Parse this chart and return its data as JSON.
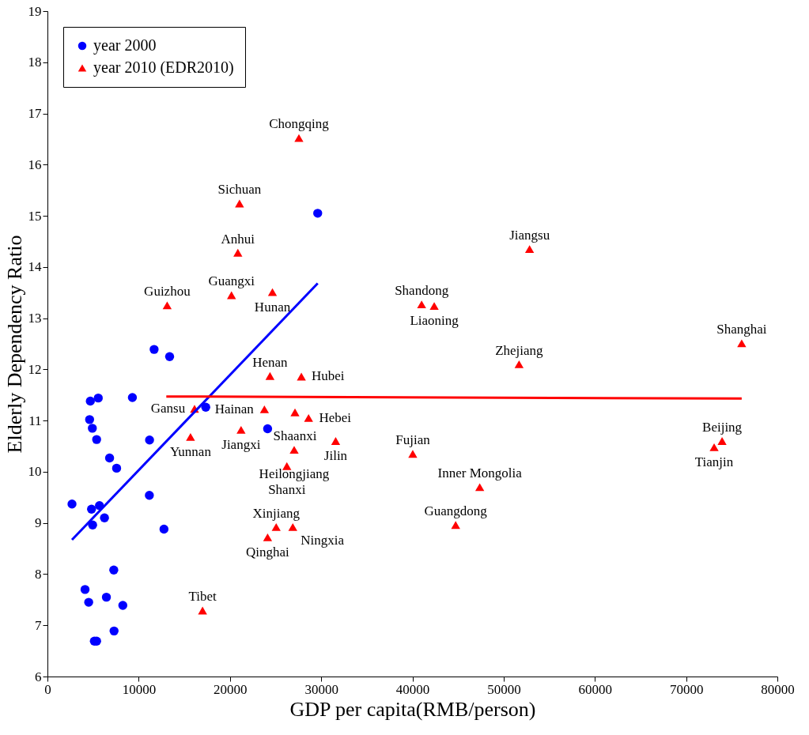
{
  "chart_data": {
    "type": "scatter",
    "xlabel": "GDP per capita(RMB/person)",
    "ylabel": "Elderly Dependency Ratio",
    "xlim": [
      0,
      80000
    ],
    "xticks": [
      0,
      10000,
      20000,
      30000,
      40000,
      50000,
      60000,
      70000,
      80000
    ],
    "ylim": [
      6,
      19
    ],
    "yticks": [
      6,
      7,
      8,
      9,
      10,
      11,
      12,
      13,
      14,
      15,
      16,
      17,
      18,
      19
    ],
    "grid": false,
    "legend": "top left",
    "series": [
      {
        "name": "year 2000",
        "marker": "circle",
        "color": "#0000ff",
        "x": [
          4700,
          5570,
          9310,
          4620,
          4920,
          5390,
          11190,
          6810,
          7580,
          2690,
          4830,
          5700,
          6250,
          4950,
          11170,
          12770,
          7270,
          4120,
          4520,
          6460,
          8260,
          7300,
          5140,
          5390,
          11690,
          13390,
          17350,
          24130,
          29620
        ],
        "values": [
          11.38,
          11.44,
          11.45,
          11.02,
          10.85,
          10.63,
          10.62,
          10.27,
          10.07,
          9.37,
          9.27,
          9.34,
          9.1,
          8.96,
          9.54,
          8.88,
          8.08,
          7.7,
          7.45,
          7.55,
          7.39,
          6.89,
          6.69,
          6.69,
          12.39,
          12.25,
          11.26,
          10.84,
          15.05
        ]
      },
      {
        "name": "year 2010 (EDR2010)",
        "marker": "triangle",
        "color": "#ff0000",
        "x": [
          27560,
          21050,
          20870,
          20170,
          24660,
          13120,
          52840,
          41010,
          42390,
          76090,
          51690,
          24390,
          27830,
          16120,
          23780,
          27130,
          28620,
          15680,
          21220,
          31590,
          27040,
          26240,
          40040,
          47380,
          44740,
          25070,
          26890,
          24130,
          17000,
          73940,
          73070
        ],
        "values": [
          16.52,
          15.24,
          14.28,
          13.45,
          13.51,
          13.25,
          14.35,
          13.27,
          13.24,
          12.51,
          12.1,
          11.87,
          11.86,
          11.23,
          11.22,
          11.16,
          11.05,
          10.68,
          10.82,
          10.6,
          10.43,
          10.11,
          10.35,
          9.7,
          8.96,
          8.92,
          8.92,
          8.72,
          7.29,
          10.6,
          10.48
        ]
      },
      {
        "type": "line",
        "color": "#0000ff",
        "x": [
          2690,
          29620
        ],
        "values": [
          8.67,
          13.68
        ]
      },
      {
        "type": "line",
        "color": "#ff0000",
        "x": [
          13030,
          76090
        ],
        "values": [
          11.47,
          11.43
        ]
      }
    ],
    "annotations": [
      {
        "text": "Chongqing",
        "x": 27560,
        "y": 16.52
      },
      {
        "text": "Sichuan",
        "x": 21050,
        "y": 15.24
      },
      {
        "text": "Anhui",
        "x": 20870,
        "y": 14.28
      },
      {
        "text": "Guangxi",
        "x": 20170,
        "y": 13.45
      },
      {
        "text": "Hunan",
        "x": 24660,
        "y": 13.51
      },
      {
        "text": "Guizhou",
        "x": 13120,
        "y": 13.25
      },
      {
        "text": "Jiangsu",
        "x": 52840,
        "y": 14.35
      },
      {
        "text": "Shandong",
        "x": 41010,
        "y": 13.27
      },
      {
        "text": "Liaoning",
        "x": 42390,
        "y": 13.24
      },
      {
        "text": "Shanghai",
        "x": 76090,
        "y": 12.51
      },
      {
        "text": "Zhejiang",
        "x": 51690,
        "y": 12.1
      },
      {
        "text": "Henan",
        "x": 24390,
        "y": 11.87
      },
      {
        "text": "Hubei",
        "x": 27830,
        "y": 11.86
      },
      {
        "text": "Gansu",
        "x": 16120,
        "y": 11.23
      },
      {
        "text": "Hainan",
        "x": 23780,
        "y": 11.22
      },
      {
        "text": "Shaanxi",
        "x": 27130,
        "y": 11.16
      },
      {
        "text": "Hebei",
        "x": 28620,
        "y": 11.05
      },
      {
        "text": "Yunnan",
        "x": 15680,
        "y": 10.68
      },
      {
        "text": "Jiangxi",
        "x": 21220,
        "y": 10.82
      },
      {
        "text": "Jilin",
        "x": 31590,
        "y": 10.6
      },
      {
        "text": "Heilongjiang",
        "x": 27040,
        "y": 10.43
      },
      {
        "text": "Shanxi",
        "x": 26240,
        "y": 10.11
      },
      {
        "text": "Fujian",
        "x": 40040,
        "y": 10.35
      },
      {
        "text": "Inner Mongolia",
        "x": 47380,
        "y": 9.7
      },
      {
        "text": "Guangdong",
        "x": 44740,
        "y": 8.96
      },
      {
        "text": "Xinjiang",
        "x": 25070,
        "y": 8.92
      },
      {
        "text": "Ningxia",
        "x": 26890,
        "y": 8.92
      },
      {
        "text": "Qinghai",
        "x": 24130,
        "y": 8.72
      },
      {
        "text": "Tibet",
        "x": 17000,
        "y": 7.29
      },
      {
        "text": "Beijing",
        "x": 73940,
        "y": 10.6
      },
      {
        "text": "Tianjin",
        "x": 73070,
        "y": 10.48
      }
    ]
  }
}
